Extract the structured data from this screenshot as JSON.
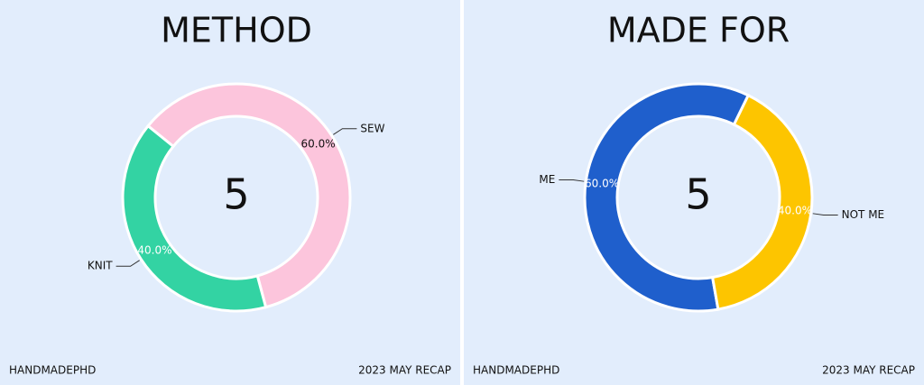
{
  "chart_data": [
    {
      "type": "pie",
      "title": "METHOD",
      "total": 5,
      "categories": [
        "SEW",
        "KNIT"
      ],
      "values": [
        60,
        40
      ],
      "value_labels": [
        "60.0%",
        "40.0%"
      ],
      "colors": [
        "#fcc5dc",
        "#33d3a3"
      ],
      "footer_left": "HANDMADEPHD",
      "footer_right": "2023 MAY RECAP"
    },
    {
      "type": "pie",
      "title": "MADE FOR",
      "total": 5,
      "categories": [
        "ME",
        "NOT ME"
      ],
      "values": [
        60,
        40
      ],
      "value_labels": [
        "60.0%",
        "40.0%"
      ],
      "colors": [
        "#1f5fcc",
        "#fdc500"
      ],
      "footer_left": "HANDMADEPHD",
      "footer_right": "2023 MAY RECAP"
    }
  ]
}
